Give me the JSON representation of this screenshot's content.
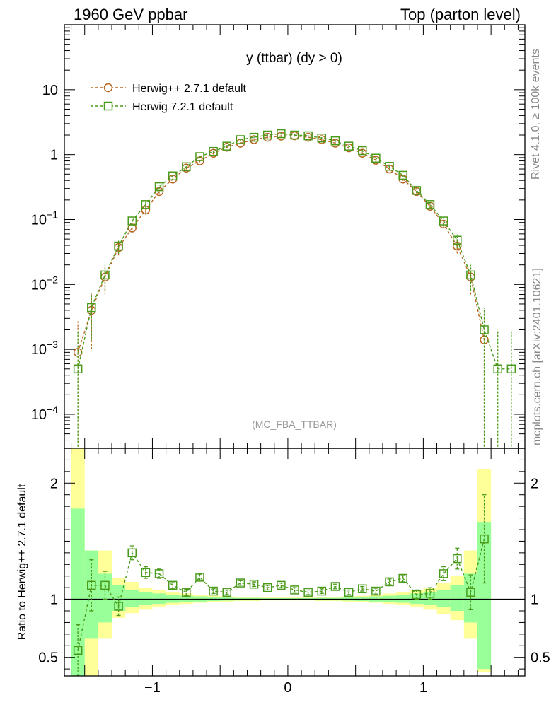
{
  "header": {
    "left": "1960 GeV ppbar",
    "right": "Top (parton level)"
  },
  "side_labels": {
    "rivet": "Rivet 4.1.0, ≥ 100k events",
    "source": "mcplots.cern.ch [arXiv:2401.10621]"
  },
  "chart_data": [
    {
      "type": "line",
      "title": "y (ttbar) (dy > 0)",
      "watermark": "(MC_FBA_TTBAR)",
      "yscale": "log",
      "xlim": [
        -1.65,
        1.75
      ],
      "ylim": [
        3e-05,
        100
      ],
      "yticks": [
        {
          "v": 10,
          "base": "10",
          "exp": ""
        },
        {
          "v": 1,
          "base": "1",
          "exp": ""
        },
        {
          "v": 0.1,
          "base": "10",
          "exp": "−1"
        },
        {
          "v": 0.01,
          "base": "10",
          "exp": "−2"
        },
        {
          "v": 0.001,
          "base": "10",
          "exp": "−3"
        },
        {
          "v": 0.0001,
          "base": "10",
          "exp": "−4"
        }
      ],
      "x": [
        -1.55,
        -1.45,
        -1.35,
        -1.25,
        -1.15,
        -1.05,
        -0.95,
        -0.85,
        -0.75,
        -0.65,
        -0.55,
        -0.45,
        -0.35,
        -0.25,
        -0.15,
        -0.05,
        0.05,
        0.15,
        0.25,
        0.35,
        0.45,
        0.55,
        0.65,
        0.75,
        0.85,
        0.95,
        1.05,
        1.15,
        1.25,
        1.35,
        1.45,
        1.55,
        1.65
      ],
      "series": [
        {
          "name": "Herwig++ 2.7.1 default",
          "color": "#b5651d",
          "marker": "circle",
          "values": [
            0.0009,
            0.004,
            0.013,
            0.037,
            0.074,
            0.14,
            0.27,
            0.42,
            0.62,
            0.8,
            1.05,
            1.3,
            1.5,
            1.7,
            1.85,
            1.93,
            1.95,
            1.85,
            1.7,
            1.5,
            1.27,
            1.05,
            0.82,
            0.6,
            0.42,
            0.27,
            0.16,
            0.085,
            0.039,
            0.013,
            0.0014,
            null,
            null
          ],
          "err": [
            0.0006,
            0.001,
            0.002,
            0.003,
            0.004,
            0.005,
            0.006,
            0.008,
            0.01,
            0.012,
            0.014,
            0.016,
            0.018,
            0.02,
            0.02,
            0.02,
            0.02,
            0.02,
            0.02,
            0.018,
            0.016,
            0.014,
            0.012,
            0.01,
            0.008,
            0.006,
            0.005,
            0.004,
            0.003,
            0.002,
            0.0007,
            null,
            null
          ]
        },
        {
          "name": "Herwig 7.2.1 default",
          "color": "#4a9a1a",
          "marker": "square",
          "values": [
            0.0005,
            0.0044,
            0.014,
            0.039,
            0.095,
            0.17,
            0.32,
            0.47,
            0.65,
            0.93,
            1.12,
            1.35,
            1.7,
            1.85,
            2.0,
            2.1,
            2.0,
            1.95,
            1.8,
            1.63,
            1.35,
            1.15,
            0.88,
            0.66,
            0.48,
            0.28,
            0.17,
            0.095,
            0.048,
            0.014,
            0.002,
            0.0005,
            0.0005
          ],
          "err": [
            0.0005,
            0.001,
            0.002,
            0.003,
            0.005,
            0.006,
            0.008,
            0.01,
            0.012,
            0.014,
            0.016,
            0.018,
            0.02,
            0.02,
            0.022,
            0.022,
            0.022,
            0.022,
            0.02,
            0.02,
            0.018,
            0.016,
            0.014,
            0.012,
            0.01,
            0.008,
            0.006,
            0.005,
            0.004,
            0.002,
            0.0008,
            0.0005,
            0.0005
          ]
        }
      ]
    },
    {
      "type": "line",
      "ylabel": "Ratio to Herwig++ 2.7.1 default",
      "xlim": [
        -1.65,
        1.75
      ],
      "ylim": [
        0.34,
        2.3
      ],
      "xticks": [
        {
          "v": -1,
          "label": "−1"
        },
        {
          "v": 0,
          "label": "0"
        },
        {
          "v": 1,
          "label": "1"
        }
      ],
      "yticks": [
        {
          "v": 2,
          "label": "2"
        },
        {
          "v": 1,
          "label": "1"
        },
        {
          "v": 0.5,
          "label": "0.5"
        }
      ],
      "bins": [
        -1.6,
        -1.5,
        -1.4,
        -1.3,
        -1.2,
        -1.1,
        -1.0,
        -0.9,
        -0.8,
        -0.7,
        -0.6,
        -0.5,
        -0.4,
        -0.3,
        -0.2,
        -0.1,
        0.0,
        0.1,
        0.2,
        0.3,
        0.4,
        0.5,
        0.6,
        0.7,
        0.8,
        0.9,
        1.0,
        1.1,
        1.2,
        1.3,
        1.4,
        1.5
      ],
      "yellow_band": [
        [
          0.34,
          2.3
        ],
        [
          0.34,
          1.42
        ],
        [
          0.66,
          1.42
        ],
        [
          0.84,
          1.18
        ],
        [
          0.88,
          1.15
        ],
        [
          0.91,
          1.1
        ],
        [
          0.93,
          1.08
        ],
        [
          0.95,
          1.06
        ],
        [
          0.96,
          1.05
        ],
        [
          0.97,
          1.04
        ],
        [
          0.975,
          1.03
        ],
        [
          0.98,
          1.025
        ],
        [
          0.985,
          1.02
        ],
        [
          0.985,
          1.02
        ],
        [
          0.99,
          1.015
        ],
        [
          0.99,
          1.015
        ],
        [
          0.99,
          1.015
        ],
        [
          0.99,
          1.015
        ],
        [
          0.985,
          1.02
        ],
        [
          0.985,
          1.02
        ],
        [
          0.98,
          1.025
        ],
        [
          0.975,
          1.03
        ],
        [
          0.97,
          1.04
        ],
        [
          0.96,
          1.05
        ],
        [
          0.95,
          1.06
        ],
        [
          0.93,
          1.08
        ],
        [
          0.91,
          1.1
        ],
        [
          0.87,
          1.14
        ],
        [
          0.82,
          1.2
        ],
        [
          0.66,
          1.42
        ],
        [
          0.37,
          2.12
        ]
      ],
      "green_band": [
        [
          0.34,
          1.78
        ],
        [
          0.66,
          1.42
        ],
        [
          0.8,
          1.22
        ],
        [
          0.9,
          1.12
        ],
        [
          0.93,
          1.08
        ],
        [
          0.95,
          1.06
        ],
        [
          0.96,
          1.05
        ],
        [
          0.97,
          1.04
        ],
        [
          0.975,
          1.03
        ],
        [
          0.98,
          1.025
        ],
        [
          0.985,
          1.02
        ],
        [
          0.988,
          1.015
        ],
        [
          0.99,
          1.012
        ],
        [
          0.99,
          1.012
        ],
        [
          0.992,
          1.01
        ],
        [
          0.992,
          1.01
        ],
        [
          0.992,
          1.01
        ],
        [
          0.992,
          1.01
        ],
        [
          0.99,
          1.012
        ],
        [
          0.99,
          1.012
        ],
        [
          0.988,
          1.015
        ],
        [
          0.985,
          1.02
        ],
        [
          0.98,
          1.025
        ],
        [
          0.975,
          1.03
        ],
        [
          0.97,
          1.04
        ],
        [
          0.96,
          1.05
        ],
        [
          0.95,
          1.06
        ],
        [
          0.93,
          1.08
        ],
        [
          0.9,
          1.12
        ],
        [
          0.8,
          1.22
        ],
        [
          0.4,
          1.66
        ]
      ],
      "x": [
        -1.55,
        -1.45,
        -1.35,
        -1.25,
        -1.15,
        -1.05,
        -0.95,
        -0.85,
        -0.75,
        -0.65,
        -0.55,
        -0.45,
        -0.35,
        -0.25,
        -0.15,
        -0.05,
        0.05,
        0.15,
        0.25,
        0.35,
        0.45,
        0.55,
        0.65,
        0.75,
        0.85,
        0.95,
        1.05,
        1.15,
        1.25,
        1.35,
        1.45
      ],
      "series": [
        {
          "name": "Herwig 7.2.1 default",
          "color": "#4a9a1a",
          "marker": "square",
          "values": [
            0.56,
            1.12,
            1.12,
            0.94,
            1.4,
            1.23,
            1.22,
            1.12,
            1.06,
            1.19,
            1.07,
            1.06,
            1.14,
            1.13,
            1.1,
            1.12,
            1.08,
            1.06,
            1.07,
            1.11,
            1.06,
            1.09,
            1.07,
            1.15,
            1.18,
            1.04,
            1.05,
            1.22,
            1.35,
            1.06,
            1.52
          ],
          "err": [
            0.22,
            0.22,
            0.12,
            0.08,
            0.06,
            0.05,
            0.04,
            0.03,
            0.025,
            0.025,
            0.02,
            0.02,
            0.02,
            0.02,
            0.02,
            0.02,
            0.02,
            0.02,
            0.02,
            0.02,
            0.02,
            0.02,
            0.025,
            0.025,
            0.03,
            0.04,
            0.05,
            0.06,
            0.09,
            0.15,
            0.38
          ]
        }
      ],
      "reference_line": 1
    }
  ],
  "colors": {
    "yellow_band": "#ffff99",
    "green_band": "#99ff99",
    "axis": "#000000",
    "watermark": "#999999",
    "side_label": "#888888"
  }
}
